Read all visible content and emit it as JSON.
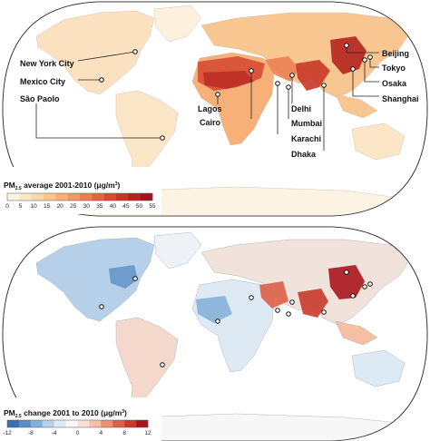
{
  "map1": {
    "legend": {
      "title_prefix": "PM",
      "title_sub": "2.5",
      "title_rest": " average 2001-2010 (μg/m",
      "title_sup": "3",
      "title_close": ")",
      "ticks": [
        "0",
        "5",
        "10",
        "15",
        "20",
        "25",
        "30",
        "35",
        "40",
        "45",
        "50",
        "55"
      ],
      "colors": [
        "#fdf3e2",
        "#fbe6c8",
        "#fad7ac",
        "#f8c691",
        "#f6b078",
        "#f29863",
        "#ec7f51",
        "#e36541",
        "#d64c33",
        "#c73728",
        "#b4241f",
        "#9e141a"
      ]
    },
    "cities": [
      {
        "name": "New York City"
      },
      {
        "name": "Mexico City"
      },
      {
        "name": "São Paolo"
      },
      {
        "name": "Lagos"
      },
      {
        "name": "Cairo"
      },
      {
        "name": "Delhi"
      },
      {
        "name": "Mumbai"
      },
      {
        "name": "Karachi"
      },
      {
        "name": "Dhaka"
      },
      {
        "name": "Beijing"
      },
      {
        "name": "Tokyo"
      },
      {
        "name": "Osaka"
      },
      {
        "name": "Shanghai"
      }
    ]
  },
  "map2": {
    "legend": {
      "title_prefix": "PM",
      "title_sub": "2.5",
      "title_rest": " change 2001 to 2010 (μg/m",
      "title_sup": "3",
      "title_close": ")",
      "ticks": [
        "-12",
        "-8",
        "-4",
        "0",
        "4",
        "8",
        "12"
      ],
      "colors": [
        "#3a6fb0",
        "#5b8fc6",
        "#86b0d8",
        "#b5d0e8",
        "#dde9f3",
        "#f7f7f7",
        "#fbe0d2",
        "#f5bfa4",
        "#eb9273",
        "#dc6048",
        "#c93a2c",
        "#a8161c"
      ]
    }
  }
}
